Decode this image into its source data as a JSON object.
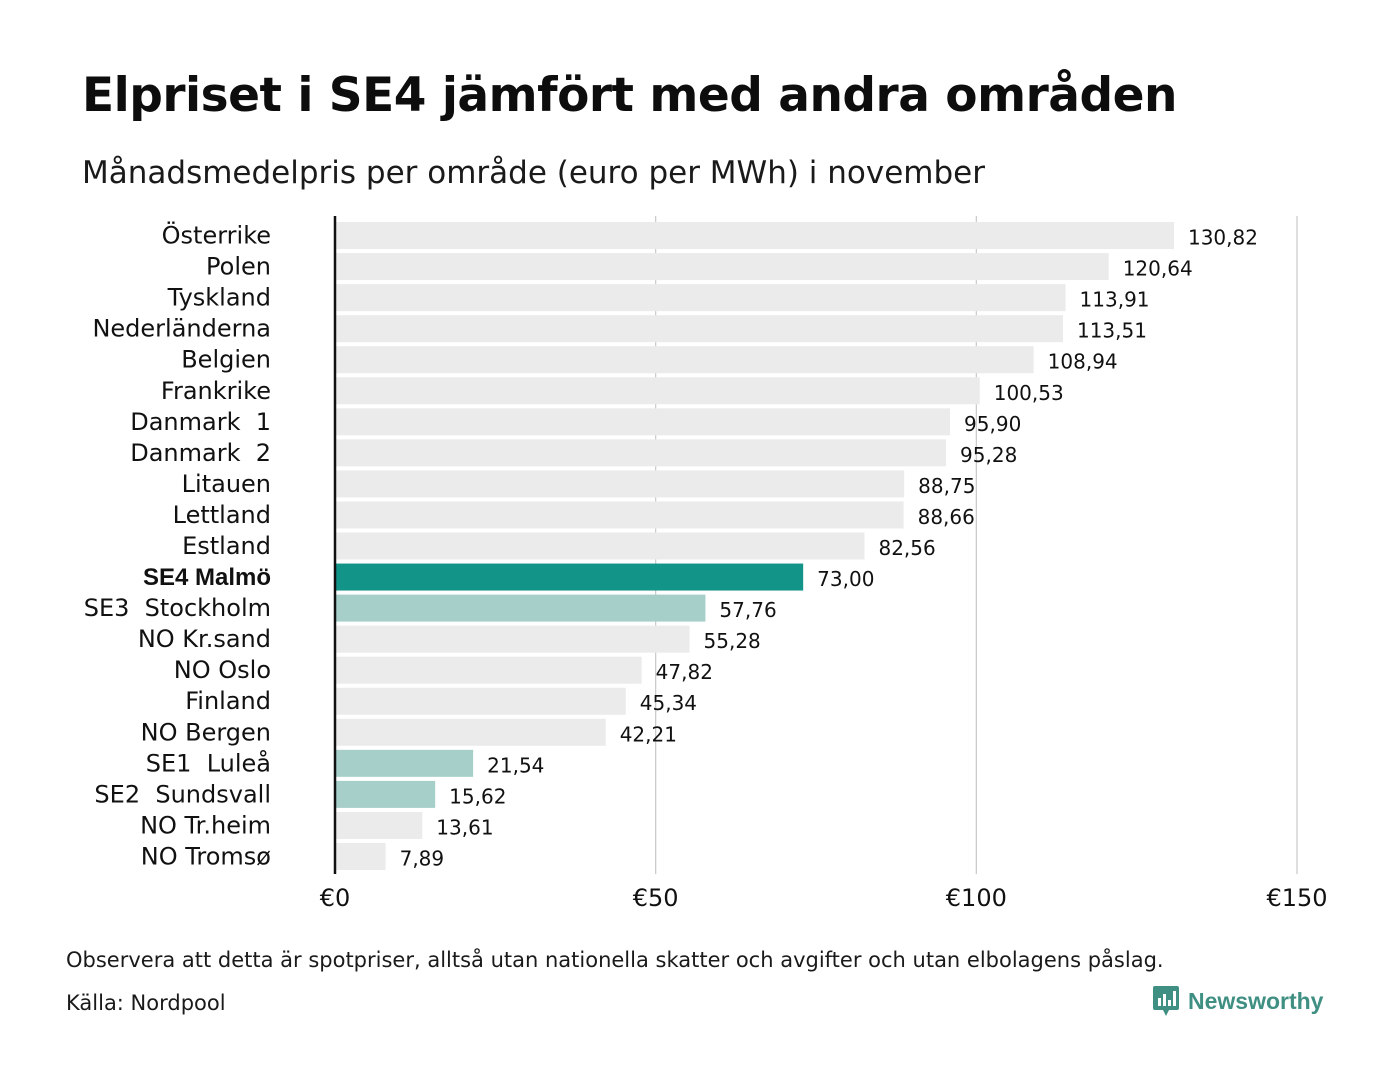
{
  "title": "Elpriset i SE4 jämfört med andra områden",
  "subtitle": "Månadsmedelpris per område (euro per MWh) i november",
  "footnote": "Observera att detta är spotpriser, alltså utan nationella skatter och avgifter och utan elbolagens påslag.",
  "source": "Källa: Nordpool",
  "brand": {
    "name": "Newsworthy",
    "icon": "newsworthy-logo-icon",
    "color": "#3f8f83"
  },
  "colors": {
    "default": "#ebebeb",
    "highlight": "#139488",
    "swedish": "#a6cfc9",
    "grid": "#c8c8c8",
    "axis": "#111111"
  },
  "chart_data": {
    "type": "bar",
    "orientation": "horizontal",
    "title": "Elpriset i SE4 jämfört med andra områden",
    "subtitle": "Månadsmedelpris per område (euro per MWh) i november",
    "xlim": [
      0,
      150
    ],
    "x_ticks": [
      0,
      50,
      100,
      150
    ],
    "x_tick_labels": [
      "€0",
      "€50",
      "€100",
      "€150"
    ],
    "grid": true,
    "categories": [
      "Österrike",
      "Polen",
      "Tyskland",
      "Nederländerna",
      "Belgien",
      "Frankrike",
      "Danmark  1",
      "Danmark  2",
      "Litauen",
      "Lettland",
      "Estland",
      "SE4 Malmö",
      "SE3  Stockholm",
      "NO Kr.sand",
      "NO Oslo",
      "Finland",
      "NO Bergen",
      "SE1  Luleå",
      "SE2  Sundsvall",
      "NO Tr.heim",
      "NO Tromsø"
    ],
    "values": [
      130.82,
      120.64,
      113.91,
      113.51,
      108.94,
      100.53,
      95.9,
      95.28,
      88.75,
      88.66,
      82.56,
      73.0,
      57.76,
      55.28,
      47.82,
      45.34,
      42.21,
      21.54,
      15.62,
      13.61,
      7.89
    ],
    "value_labels": [
      "130,82",
      "120,64",
      "113,91",
      "113,51",
      "108,94",
      "100,53",
      "95,90",
      "95,28",
      "88,75",
      "88,66",
      "82,56",
      "73,00",
      "57,76",
      "55,28",
      "47,82",
      "45,34",
      "42,21",
      "21,54",
      "15,62",
      "13,61",
      "7,89"
    ],
    "bar_groups": [
      "default",
      "default",
      "default",
      "default",
      "default",
      "default",
      "default",
      "default",
      "default",
      "default",
      "default",
      "highlight",
      "swedish",
      "default",
      "default",
      "default",
      "default",
      "swedish",
      "swedish",
      "default",
      "default"
    ]
  }
}
